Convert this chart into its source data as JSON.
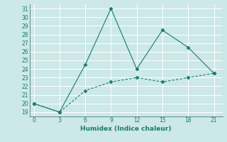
{
  "xlabel": "Humidex (Indice chaleur)",
  "x": [
    0,
    3,
    6,
    9,
    12,
    15,
    18,
    21
  ],
  "line1_y": [
    20,
    19,
    24.5,
    31,
    24,
    28.5,
    26.5,
    23.5
  ],
  "line2_y": [
    20,
    19,
    21.5,
    22.5,
    23,
    22.5,
    23,
    23.5
  ],
  "line_color": "#1a7a6e",
  "bg_color": "#cce8e8",
  "grid_color": "#ffffff",
  "ylim": [
    19,
    31
  ],
  "xlim": [
    0,
    21
  ],
  "yticks": [
    19,
    20,
    21,
    22,
    23,
    24,
    25,
    26,
    27,
    28,
    29,
    30,
    31
  ],
  "xticks": [
    0,
    3,
    6,
    9,
    12,
    15,
    18,
    21
  ],
  "tick_fontsize": 5.5,
  "xlabel_fontsize": 6.5
}
